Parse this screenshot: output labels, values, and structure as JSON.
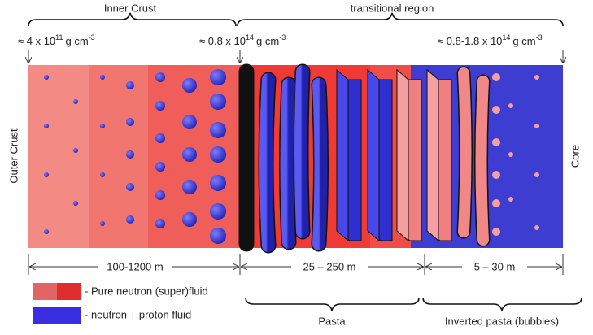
{
  "top_labels": {
    "inner_crust": "Inner Crust",
    "transitional_region": "transitional region"
  },
  "densities": [
    {
      "approx": "≈ 4 x 10",
      "exponent": "11",
      "unit": "g cm",
      "unit_exponent": "-3"
    },
    {
      "approx": "≈ 0.8 x 10",
      "exponent": "14",
      "unit": "g cm",
      "unit_exponent": "-3"
    },
    {
      "approx": "≈ 0.8-1.8 x 10",
      "exponent": "14",
      "unit": "g cm",
      "unit_exponent": "-3"
    }
  ],
  "side_labels": {
    "left": "Outer Crust",
    "right": "Core"
  },
  "dimensions": [
    "100-1200 m",
    "25 – 250 m",
    "5 – 30 m"
  ],
  "legend": [
    {
      "label": "- Pure neutron (super)fluid"
    },
    {
      "label": "- neutron + proton fluid"
    }
  ],
  "bottom_labels": [
    "Pasta",
    "Inverted pasta (bubbles)"
  ]
}
